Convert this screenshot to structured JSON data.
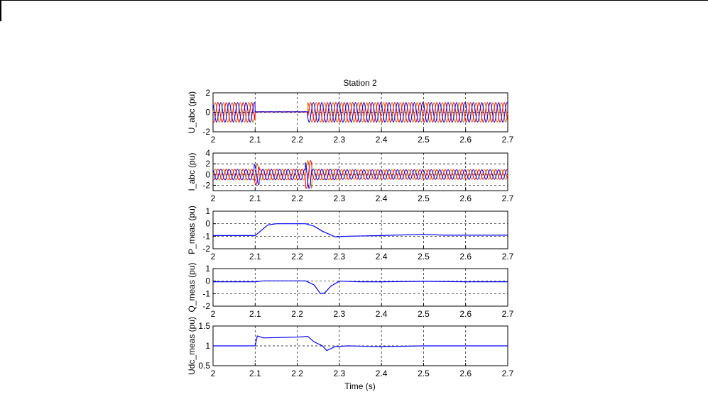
{
  "figure": {
    "title": "Station 2",
    "xlabel": "Time (s)"
  },
  "chart_data": [
    {
      "type": "line",
      "ylabel": "U_abc (pu)",
      "xlim": [
        2,
        2.7
      ],
      "ylim": [
        -2,
        2
      ],
      "xticks": [
        "2",
        "2.1",
        "2.2",
        "2.3",
        "2.4",
        "2.5",
        "2.6",
        "2.7"
      ],
      "yticks": [
        "-2",
        "0",
        "2"
      ],
      "grid": true,
      "series": [
        {
          "color": "#d07000",
          "signal": "three-phase sinusoid, amplitude ~1 pu; collapses to ~0.05 pu between t=2.10 and t=2.225"
        },
        {
          "color": "#ff0000",
          "signal": "three-phase sinusoid, amplitude ~1 pu; collapses to ~0.05 pu between t=2.10 and t=2.225"
        },
        {
          "color": "#0000ff",
          "signal": "three-phase sinusoid, amplitude ~1 pu; collapses to ~0.05 pu between t=2.10 and t=2.225"
        }
      ]
    },
    {
      "type": "line",
      "ylabel": "I_abc (pu)",
      "xlim": [
        2,
        2.7
      ],
      "ylim": [
        -3,
        4
      ],
      "xticks": [
        "2",
        "2.1",
        "2.2",
        "2.3",
        "2.4",
        "2.5",
        "2.6",
        "2.7"
      ],
      "yticks": [
        "-2",
        "0",
        "2",
        "4"
      ],
      "grid": true,
      "series": [
        {
          "color": "#d07000",
          "signal": "three-phase sinusoid, amplitude ~1 pu with spikes near t=2.10 (~2) and t=2.225 (~3)"
        },
        {
          "color": "#ff0000",
          "signal": "three-phase sinusoid"
        },
        {
          "color": "#0000ff",
          "signal": "three-phase sinusoid"
        }
      ]
    },
    {
      "type": "line",
      "ylabel": "P_meas (pu)",
      "xlim": [
        2,
        2.7
      ],
      "ylim": [
        -2,
        1
      ],
      "xticks": [
        "2",
        "2.1",
        "2.2",
        "2.3",
        "2.4",
        "2.5",
        "2.6",
        "2.7"
      ],
      "yticks": [
        "-2",
        "-1",
        "0",
        "1"
      ],
      "grid": true,
      "series": [
        {
          "color": "#0000ff",
          "x": [
            2.0,
            2.1,
            2.13,
            2.15,
            2.22,
            2.24,
            2.26,
            2.29,
            2.32,
            2.4,
            2.5,
            2.55,
            2.6,
            2.7
          ],
          "y": [
            -0.95,
            -0.95,
            -0.1,
            0.0,
            0.0,
            -0.2,
            -0.6,
            -1.05,
            -1.0,
            -0.95,
            -0.85,
            -0.92,
            -0.92,
            -0.92
          ]
        }
      ]
    },
    {
      "type": "line",
      "ylabel": "Q_meas (pu)",
      "xlim": [
        2,
        2.7
      ],
      "ylim": [
        -2,
        1
      ],
      "xticks": [
        "2",
        "2.1",
        "2.2",
        "2.3",
        "2.4",
        "2.5",
        "2.6",
        "2.7"
      ],
      "yticks": [
        "-2",
        "-1",
        "0",
        "1"
      ],
      "grid": true,
      "series": [
        {
          "color": "#0000ff",
          "x": [
            2.0,
            2.1,
            2.12,
            2.22,
            2.24,
            2.255,
            2.265,
            2.28,
            2.3,
            2.35,
            2.4,
            2.5,
            2.6,
            2.7
          ],
          "y": [
            -0.05,
            -0.05,
            0.02,
            0.02,
            -0.3,
            -1.0,
            -0.95,
            -0.4,
            0.0,
            -0.05,
            -0.05,
            -0.02,
            -0.05,
            -0.05
          ]
        }
      ]
    },
    {
      "type": "line",
      "ylabel": "Udc_meas (pu)",
      "xlim": [
        2,
        2.7
      ],
      "ylim": [
        0.5,
        1.5
      ],
      "xticks": [
        "2",
        "2.1",
        "2.2",
        "2.3",
        "2.4",
        "2.5",
        "2.6",
        "2.7"
      ],
      "yticks": [
        "0.5",
        "1",
        "1.5"
      ],
      "grid": true,
      "series": [
        {
          "color": "#0000ff",
          "x": [
            2.0,
            2.1,
            2.105,
            2.12,
            2.2,
            2.225,
            2.24,
            2.26,
            2.27,
            2.29,
            2.32,
            2.4,
            2.5,
            2.7
          ],
          "y": [
            1.0,
            1.0,
            1.25,
            1.2,
            1.22,
            1.24,
            1.1,
            1.0,
            0.88,
            0.98,
            1.0,
            0.98,
            1.0,
            1.0
          ]
        }
      ]
    }
  ]
}
